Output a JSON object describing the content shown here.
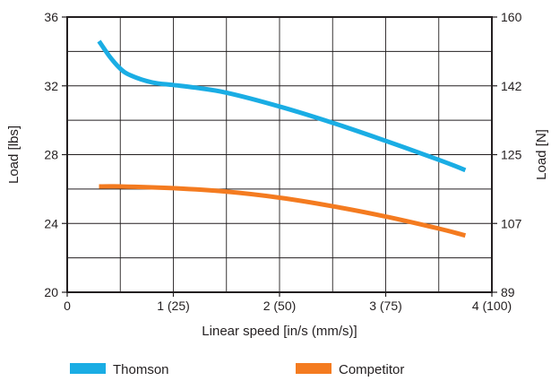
{
  "chart_data": {
    "type": "line",
    "xlabel": "Linear speed [in/s (mm/s)]",
    "ylabel_left": "Load [lbs]",
    "ylabel_right": "Load [N]",
    "xlim": [
      0,
      4
    ],
    "ylim": [
      20,
      36
    ],
    "x_ticks": [
      0,
      1,
      2,
      3,
      4
    ],
    "x_tick_labels": [
      "0",
      "1 (25)",
      "2 (50)",
      "3 (75)",
      "4 (100)"
    ],
    "y_ticks_left": [
      20,
      24,
      28,
      32,
      36
    ],
    "y_tick_labels_left": [
      "20",
      "24",
      "28",
      "32",
      "36"
    ],
    "y_tick_labels_right": [
      "89",
      "107",
      "125",
      "142",
      "160"
    ],
    "grid": true,
    "legend_position": "bottom",
    "series": [
      {
        "name": "Thomson",
        "color": "#1aade4",
        "x": [
          0.3,
          0.4,
          0.5,
          0.6,
          0.8,
          1.0,
          1.2,
          1.5,
          2.0,
          2.5,
          3.0,
          3.5,
          3.75
        ],
        "y": [
          34.6,
          33.7,
          33.0,
          32.6,
          32.2,
          32.05,
          31.9,
          31.6,
          30.8,
          29.85,
          28.8,
          27.7,
          27.1
        ]
      },
      {
        "name": "Competitor",
        "color": "#f47b20",
        "x": [
          0.3,
          0.5,
          1.0,
          1.5,
          2.0,
          2.5,
          3.0,
          3.5,
          3.75
        ],
        "y": [
          26.15,
          26.15,
          26.05,
          25.85,
          25.5,
          25.0,
          24.4,
          23.7,
          23.3
        ]
      }
    ]
  }
}
